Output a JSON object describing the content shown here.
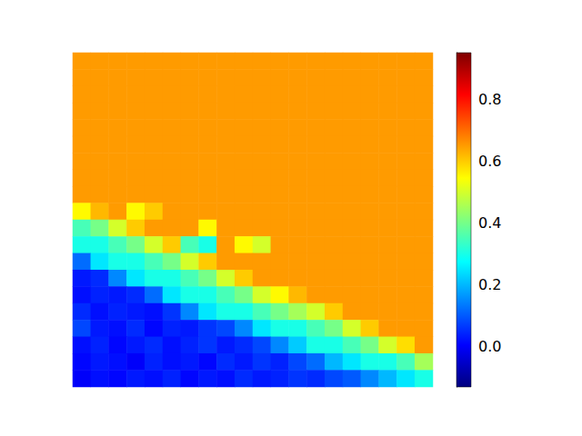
{
  "chart_data": {
    "type": "heatmap",
    "tick_labels": false,
    "cells": [
      [
        0.65,
        0.65,
        0.65,
        0.65,
        0.65,
        0.65,
        0.65,
        0.65,
        0.65,
        0.65,
        0.65,
        0.65,
        0.65,
        0.65,
        0.65,
        0.65,
        0.65,
        0.65,
        0.65,
        0.65
      ],
      [
        0.65,
        0.65,
        0.65,
        0.65,
        0.65,
        0.65,
        0.65,
        0.65,
        0.65,
        0.65,
        0.65,
        0.65,
        0.65,
        0.65,
        0.65,
        0.65,
        0.65,
        0.65,
        0.65,
        0.65
      ],
      [
        0.65,
        0.65,
        0.65,
        0.65,
        0.65,
        0.65,
        0.65,
        0.65,
        0.65,
        0.65,
        0.65,
        0.65,
        0.65,
        0.65,
        0.65,
        0.65,
        0.65,
        0.65,
        0.65,
        0.65
      ],
      [
        0.65,
        0.65,
        0.65,
        0.65,
        0.65,
        0.65,
        0.65,
        0.65,
        0.65,
        0.65,
        0.65,
        0.65,
        0.65,
        0.65,
        0.65,
        0.65,
        0.65,
        0.65,
        0.65,
        0.65
      ],
      [
        0.65,
        0.65,
        0.65,
        0.65,
        0.65,
        0.65,
        0.65,
        0.65,
        0.65,
        0.65,
        0.65,
        0.65,
        0.65,
        0.65,
        0.65,
        0.65,
        0.65,
        0.65,
        0.65,
        0.65
      ],
      [
        0.65,
        0.65,
        0.65,
        0.65,
        0.65,
        0.65,
        0.65,
        0.65,
        0.65,
        0.65,
        0.65,
        0.65,
        0.65,
        0.65,
        0.65,
        0.65,
        0.65,
        0.65,
        0.65,
        0.65
      ],
      [
        0.65,
        0.65,
        0.65,
        0.65,
        0.65,
        0.65,
        0.65,
        0.65,
        0.65,
        0.65,
        0.65,
        0.65,
        0.65,
        0.65,
        0.65,
        0.65,
        0.65,
        0.65,
        0.65,
        0.65
      ],
      [
        0.65,
        0.65,
        0.65,
        0.65,
        0.65,
        0.65,
        0.65,
        0.65,
        0.65,
        0.65,
        0.65,
        0.65,
        0.65,
        0.65,
        0.65,
        0.65,
        0.65,
        0.65,
        0.65,
        0.65
      ],
      [
        0.65,
        0.65,
        0.65,
        0.65,
        0.65,
        0.65,
        0.65,
        0.65,
        0.65,
        0.65,
        0.65,
        0.65,
        0.65,
        0.65,
        0.65,
        0.65,
        0.65,
        0.65,
        0.65,
        0.65
      ],
      [
        0.55,
        0.62,
        0.65,
        0.55,
        0.6,
        0.65,
        0.65,
        0.65,
        0.65,
        0.65,
        0.65,
        0.65,
        0.65,
        0.65,
        0.65,
        0.65,
        0.65,
        0.65,
        0.65,
        0.65
      ],
      [
        0.35,
        0.4,
        0.5,
        0.6,
        0.65,
        0.65,
        0.65,
        0.55,
        0.65,
        0.65,
        0.65,
        0.65,
        0.65,
        0.65,
        0.65,
        0.65,
        0.65,
        0.65,
        0.65,
        0.65
      ],
      [
        0.3,
        0.3,
        0.35,
        0.4,
        0.5,
        0.6,
        0.35,
        0.3,
        0.65,
        0.55,
        0.5,
        0.65,
        0.65,
        0.65,
        0.65,
        0.65,
        0.65,
        0.65,
        0.65,
        0.65
      ],
      [
        0.12,
        0.25,
        0.3,
        0.3,
        0.35,
        0.4,
        0.5,
        0.6,
        0.65,
        0.65,
        0.65,
        0.65,
        0.65,
        0.65,
        0.65,
        0.65,
        0.65,
        0.65,
        0.65,
        0.65
      ],
      [
        0.03,
        0.05,
        0.15,
        0.25,
        0.3,
        0.3,
        0.35,
        0.4,
        0.5,
        0.6,
        0.65,
        0.65,
        0.65,
        0.65,
        0.65,
        0.65,
        0.65,
        0.65,
        0.65,
        0.65
      ],
      [
        0.02,
        0.04,
        0.03,
        0.05,
        0.12,
        0.25,
        0.3,
        0.3,
        0.35,
        0.4,
        0.5,
        0.55,
        0.62,
        0.65,
        0.65,
        0.65,
        0.65,
        0.65,
        0.65,
        0.65
      ],
      [
        0.05,
        0.02,
        0.04,
        0.03,
        0.02,
        0.06,
        0.15,
        0.25,
        0.3,
        0.3,
        0.35,
        0.4,
        0.45,
        0.5,
        0.6,
        0.65,
        0.65,
        0.65,
        0.65,
        0.65
      ],
      [
        0.08,
        0.03,
        0.02,
        0.05,
        0.01,
        0.04,
        0.03,
        0.06,
        0.08,
        0.15,
        0.25,
        0.3,
        0.3,
        0.35,
        0.4,
        0.5,
        0.6,
        0.65,
        0.65,
        0.65
      ],
      [
        0.02,
        0.04,
        0.01,
        0.03,
        0.05,
        0.02,
        0.04,
        0.06,
        0.03,
        0.05,
        0.08,
        0.15,
        0.22,
        0.3,
        0.3,
        0.35,
        0.4,
        0.5,
        0.58,
        0.65
      ],
      [
        0.01,
        0.03,
        0.02,
        0.0,
        0.04,
        0.02,
        0.03,
        0.01,
        0.05,
        0.03,
        0.06,
        0.04,
        0.08,
        0.12,
        0.2,
        0.25,
        0.3,
        0.3,
        0.35,
        0.45
      ],
      [
        0.0,
        0.02,
        0.01,
        0.03,
        0.02,
        0.04,
        0.01,
        0.03,
        0.02,
        0.05,
        0.03,
        0.04,
        0.06,
        0.05,
        0.08,
        0.1,
        0.15,
        0.2,
        0.25,
        0.3
      ]
    ],
    "colorbar": {
      "range": [
        -0.13,
        0.95
      ],
      "ticks": [
        {
          "value": 0,
          "label": "0.0"
        },
        0.2,
        0.4,
        0.6,
        0.8
      ]
    }
  }
}
